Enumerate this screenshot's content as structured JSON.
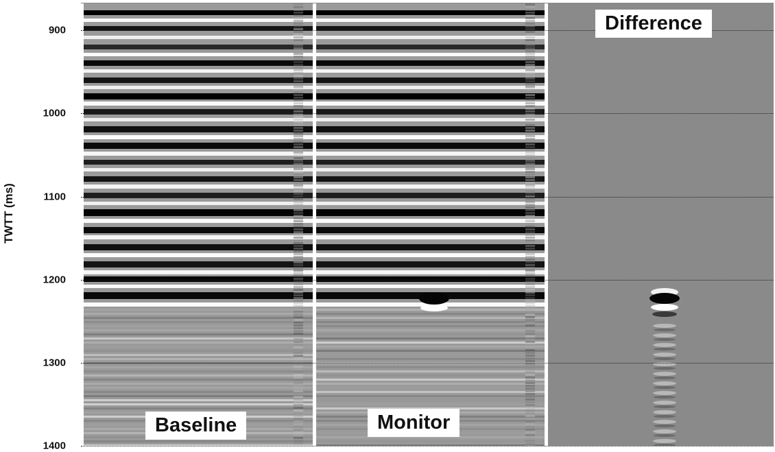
{
  "yaxis": {
    "label": "TWTT  (ms)",
    "ticks": [
      "900",
      "1000",
      "1100",
      "1200",
      "1300",
      "1400"
    ],
    "range": [
      870,
      1400
    ]
  },
  "panels": {
    "baseline": {
      "label": "Baseline"
    },
    "monitor": {
      "label": "Monitor"
    },
    "difference": {
      "label": "Difference"
    }
  },
  "colors": {
    "difference_background": "#8a8a8a",
    "trace_dark": "#0a0a0a",
    "trace_light": "#f4f4f4"
  }
}
